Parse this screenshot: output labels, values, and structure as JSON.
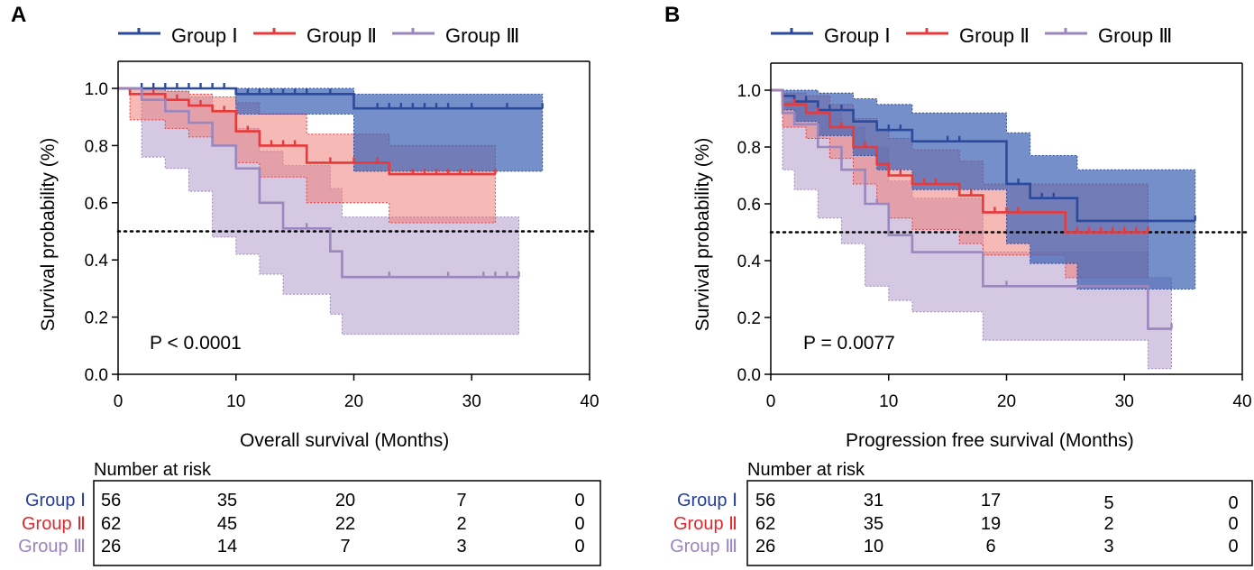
{
  "colors": {
    "group1": "#2b4a9e",
    "group2": "#e8393b",
    "group3": "#9b86bd",
    "group1_band": "#3f64b5",
    "group2_band": "#f07f7a",
    "group3_band": "#b9a6d0",
    "group1_label": "#253e9a",
    "group2_label": "#e0282d",
    "group3_label": "#9a85c2"
  },
  "chart_data": [
    {
      "panel": "A",
      "type": "line",
      "subtype": "kaplan-meier",
      "xlabel": "Overall survival (Months)",
      "ylabel": "Survival probability (%)",
      "xlim": [
        0,
        40
      ],
      "ylim": [
        0,
        1
      ],
      "xticks": [
        "0",
        "10",
        "20",
        "30",
        "40"
      ],
      "yticks": [
        "0.0",
        "0.2",
        "0.4",
        "0.6",
        "0.8",
        "1.0"
      ],
      "legend": [
        "Group Ⅰ",
        "Group Ⅱ",
        "Group Ⅲ"
      ],
      "p_value": "P < 0.0001",
      "reference_line": 0.5,
      "series": [
        {
          "name": "Group Ⅰ",
          "steps": [
            [
              0,
              1.0
            ],
            [
              10,
              0.98
            ],
            [
              20,
              0.93
            ],
            [
              36,
              0.93
            ]
          ],
          "ci": [
            [
              0,
              1.0,
              1.0
            ],
            [
              10,
              0.91,
              1.0
            ],
            [
              20,
              0.71,
              0.98
            ],
            [
              36,
              0.71,
              0.98
            ]
          ],
          "censor": [
            [
              2,
              1.0
            ],
            [
              3,
              1.0
            ],
            [
              4,
              1.0
            ],
            [
              5,
              1.0
            ],
            [
              6,
              1.0
            ],
            [
              7,
              1.0
            ],
            [
              8,
              1.0
            ],
            [
              9,
              1.0
            ],
            [
              11,
              0.98
            ],
            [
              12,
              0.98
            ],
            [
              13,
              0.98
            ],
            [
              14,
              0.98
            ],
            [
              15,
              0.98
            ],
            [
              16,
              0.98
            ],
            [
              18,
              0.98
            ],
            [
              22,
              0.93
            ],
            [
              23,
              0.93
            ],
            [
              24,
              0.93
            ],
            [
              25,
              0.93
            ],
            [
              26,
              0.93
            ],
            [
              27,
              0.93
            ],
            [
              28,
              0.93
            ],
            [
              30,
              0.93
            ],
            [
              33,
              0.93
            ],
            [
              36,
              0.93
            ]
          ]
        },
        {
          "name": "Group Ⅱ",
          "steps": [
            [
              0,
              1.0
            ],
            [
              1,
              0.98
            ],
            [
              4,
              0.96
            ],
            [
              6,
              0.94
            ],
            [
              8,
              0.92
            ],
            [
              10,
              0.85
            ],
            [
              12,
              0.8
            ],
            [
              16,
              0.74
            ],
            [
              23,
              0.7
            ],
            [
              32,
              0.7
            ]
          ],
          "ci": [
            [
              1,
              0.89,
              1.0
            ],
            [
              4,
              0.86,
              0.99
            ],
            [
              6,
              0.83,
              0.98
            ],
            [
              8,
              0.8,
              0.97
            ],
            [
              10,
              0.74,
              0.95
            ],
            [
              12,
              0.69,
              0.91
            ],
            [
              16,
              0.6,
              0.84
            ],
            [
              23,
              0.53,
              0.8
            ],
            [
              32,
              0.53,
              0.8
            ]
          ],
          "censor": [
            [
              2,
              0.98
            ],
            [
              3,
              0.98
            ],
            [
              5,
              0.96
            ],
            [
              7,
              0.94
            ],
            [
              9,
              0.92
            ],
            [
              11,
              0.85
            ],
            [
              13,
              0.8
            ],
            [
              14,
              0.8
            ],
            [
              15,
              0.8
            ],
            [
              18,
              0.74
            ],
            [
              20,
              0.74
            ],
            [
              22,
              0.74
            ],
            [
              25,
              0.7
            ],
            [
              26,
              0.7
            ],
            [
              27,
              0.7
            ],
            [
              28,
              0.7
            ],
            [
              29,
              0.7
            ],
            [
              30,
              0.7
            ],
            [
              32,
              0.7
            ]
          ]
        },
        {
          "name": "Group Ⅲ",
          "steps": [
            [
              0,
              1.0
            ],
            [
              2,
              0.96
            ],
            [
              4,
              0.92
            ],
            [
              6,
              0.88
            ],
            [
              8,
              0.8
            ],
            [
              10,
              0.72
            ],
            [
              12,
              0.6
            ],
            [
              14,
              0.51
            ],
            [
              18,
              0.43
            ],
            [
              19,
              0.34
            ],
            [
              34,
              0.34
            ]
          ],
          "ci": [
            [
              2,
              0.76,
              1.0
            ],
            [
              4,
              0.72,
              0.99
            ],
            [
              6,
              0.64,
              0.97
            ],
            [
              8,
              0.48,
              0.92
            ],
            [
              10,
              0.42,
              0.86
            ],
            [
              12,
              0.35,
              0.78
            ],
            [
              14,
              0.28,
              0.73
            ],
            [
              18,
              0.21,
              0.65
            ],
            [
              19,
              0.14,
              0.55
            ],
            [
              34,
              0.14,
              0.55
            ]
          ],
          "censor": [
            [
              16,
              0.51
            ],
            [
              23,
              0.34
            ],
            [
              28,
              0.34
            ],
            [
              31,
              0.34
            ],
            [
              32,
              0.34
            ],
            [
              33,
              0.34
            ],
            [
              34,
              0.34
            ]
          ]
        }
      ],
      "risk_table": {
        "title": "Number at risk",
        "rows": [
          {
            "label": "Group Ⅰ",
            "values": [
              "56",
              "35",
              "20",
              "7",
              "0"
            ]
          },
          {
            "label": "Group Ⅱ",
            "values": [
              "62",
              "45",
              "22",
              "2",
              "0"
            ]
          },
          {
            "label": "Group Ⅲ",
            "values": [
              "26",
              "14",
              "7",
              "3",
              "0"
            ]
          }
        ]
      }
    },
    {
      "panel": "B",
      "type": "line",
      "subtype": "kaplan-meier",
      "xlabel": "Progression free survival (Months)",
      "ylabel": "Survival probability (%)",
      "xlim": [
        0,
        40
      ],
      "ylim": [
        0,
        1
      ],
      "xticks": [
        "0",
        "10",
        "20",
        "30",
        "40"
      ],
      "yticks": [
        "0.0",
        "0.2",
        "0.4",
        "0.6",
        "0.8",
        "1.0"
      ],
      "legend": [
        "Group Ⅰ",
        "Group Ⅱ",
        "Group Ⅲ"
      ],
      "p_value": "P = 0.0077",
      "reference_line": 0.5,
      "series": [
        {
          "name": "Group Ⅰ",
          "steps": [
            [
              0,
              1.0
            ],
            [
              1,
              0.98
            ],
            [
              2,
              0.96
            ],
            [
              4,
              0.93
            ],
            [
              7,
              0.89
            ],
            [
              9,
              0.86
            ],
            [
              12,
              0.82
            ],
            [
              20,
              0.67
            ],
            [
              22,
              0.62
            ],
            [
              26,
              0.54
            ],
            [
              36,
              0.54
            ]
          ],
          "ci": [
            [
              1,
              0.93,
              1.0
            ],
            [
              2,
              0.89,
              1.0
            ],
            [
              4,
              0.84,
              0.99
            ],
            [
              7,
              0.77,
              0.97
            ],
            [
              9,
              0.72,
              0.95
            ],
            [
              12,
              0.65,
              0.92
            ],
            [
              20,
              0.46,
              0.85
            ],
            [
              22,
              0.39,
              0.77
            ],
            [
              26,
              0.3,
              0.72
            ],
            [
              36,
              0.3,
              0.72
            ]
          ],
          "censor": [
            [
              3,
              0.96
            ],
            [
              5,
              0.93
            ],
            [
              6,
              0.93
            ],
            [
              10,
              0.86
            ],
            [
              11,
              0.86
            ],
            [
              15,
              0.82
            ],
            [
              16,
              0.82
            ],
            [
              21,
              0.67
            ],
            [
              23,
              0.62
            ],
            [
              24,
              0.62
            ],
            [
              36,
              0.54
            ]
          ]
        },
        {
          "name": "Group Ⅱ",
          "steps": [
            [
              0,
              1.0
            ],
            [
              1,
              0.95
            ],
            [
              3,
              0.92
            ],
            [
              5,
              0.87
            ],
            [
              7,
              0.8
            ],
            [
              9,
              0.74
            ],
            [
              10,
              0.7
            ],
            [
              12,
              0.67
            ],
            [
              16,
              0.63
            ],
            [
              18,
              0.57
            ],
            [
              25,
              0.5
            ],
            [
              32,
              0.5
            ]
          ],
          "ci": [
            [
              1,
              0.87,
              0.99
            ],
            [
              3,
              0.83,
              0.98
            ],
            [
              5,
              0.76,
              0.95
            ],
            [
              7,
              0.67,
              0.9
            ],
            [
              9,
              0.6,
              0.86
            ],
            [
              10,
              0.55,
              0.83
            ],
            [
              12,
              0.51,
              0.79
            ],
            [
              16,
              0.46,
              0.75
            ],
            [
              18,
              0.42,
              0.67
            ],
            [
              25,
              0.34,
              0.67
            ],
            [
              32,
              0.34,
              0.67
            ]
          ],
          "censor": [
            [
              2,
              0.95
            ],
            [
              4,
              0.92
            ],
            [
              6,
              0.87
            ],
            [
              8,
              0.8
            ],
            [
              11,
              0.7
            ],
            [
              13,
              0.67
            ],
            [
              14,
              0.67
            ],
            [
              17,
              0.63
            ],
            [
              19,
              0.57
            ],
            [
              20,
              0.57
            ],
            [
              21,
              0.57
            ],
            [
              26,
              0.5
            ],
            [
              27,
              0.5
            ],
            [
              28,
              0.5
            ],
            [
              29,
              0.5
            ],
            [
              30,
              0.5
            ],
            [
              31,
              0.5
            ],
            [
              32,
              0.5
            ]
          ]
        },
        {
          "name": "Group Ⅲ",
          "steps": [
            [
              0,
              1.0
            ],
            [
              1,
              0.92
            ],
            [
              2,
              0.88
            ],
            [
              4,
              0.8
            ],
            [
              6,
              0.72
            ],
            [
              8,
              0.6
            ],
            [
              10,
              0.49
            ],
            [
              12,
              0.43
            ],
            [
              18,
              0.31
            ],
            [
              32,
              0.16
            ],
            [
              34,
              0.16
            ]
          ],
          "ci": [
            [
              1,
              0.72,
              0.96
            ],
            [
              2,
              0.65,
              0.95
            ],
            [
              4,
              0.55,
              0.92
            ],
            [
              6,
              0.46,
              0.87
            ],
            [
              8,
              0.31,
              0.8
            ],
            [
              10,
              0.26,
              0.68
            ],
            [
              12,
              0.22,
              0.62
            ],
            [
              18,
              0.12,
              0.43
            ],
            [
              32,
              0.02,
              0.34
            ],
            [
              34,
              0.02,
              0.34
            ]
          ],
          "censor": [
            [
              9,
              0.6
            ],
            [
              20,
              0.31
            ],
            [
              34,
              0.16
            ]
          ]
        }
      ],
      "risk_table": {
        "title": "Number at risk",
        "rows": [
          {
            "label": "Group Ⅰ",
            "values": [
              "56",
              "31",
              "17",
              "5",
              "0"
            ]
          },
          {
            "label": "Group Ⅱ",
            "values": [
              "62",
              "35",
              "19",
              "2",
              "0"
            ]
          },
          {
            "label": "Group Ⅲ",
            "values": [
              "26",
              "10",
              "6",
              "3",
              "0"
            ]
          }
        ]
      }
    }
  ]
}
